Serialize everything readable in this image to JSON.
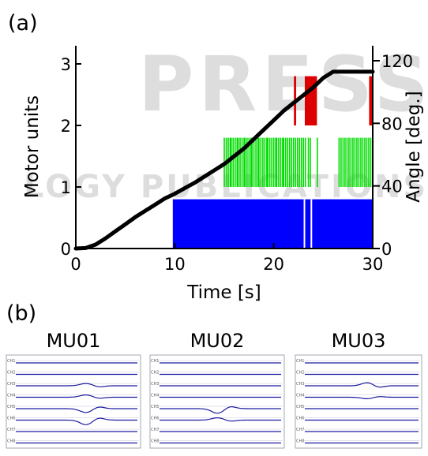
{
  "watermark": {
    "word1": "PRESS",
    "word2": "LOGY PUBLICATIONS"
  },
  "panel_a": {
    "label": "(a)"
  },
  "panel_b": {
    "label": "(b)",
    "mu_titles": [
      "MU01",
      "MU02",
      "MU03"
    ],
    "channel_labels": [
      "CH1",
      "CH2",
      "CH3",
      "CH4",
      "CH5",
      "CH6",
      "CH7",
      "CH8"
    ]
  },
  "colors": {
    "angle_line": "#000000",
    "mu1": "#0000ff",
    "mu2": "#00dd00",
    "mu3": "#dd0000",
    "emg_trace": "#1a1aa0"
  },
  "chart_data": {
    "type": "line",
    "xlabel": "Time [s]",
    "ylabel": "Motor units",
    "y2label": "Angle [deg.]",
    "xlim": [
      0,
      30
    ],
    "ylim": [
      0,
      3.3
    ],
    "y2lim": [
      0,
      120
    ],
    "xticks": [
      "0",
      "10",
      "20",
      "30"
    ],
    "yticks": [
      "0",
      "1",
      "2",
      "3"
    ],
    "y2ticks": [
      "0",
      "40",
      "80",
      "120"
    ],
    "angle_series": {
      "x": [
        0,
        1,
        2,
        3,
        4,
        5,
        6,
        7,
        8,
        9,
        10,
        11,
        12,
        13,
        14,
        15,
        16,
        17,
        18,
        19,
        20,
        21,
        22,
        23,
        24,
        25,
        26,
        27,
        28,
        29,
        30
      ],
      "y": [
        0,
        0.3,
        2.5,
        6.5,
        11,
        15.5,
        20,
        24,
        28,
        32,
        35,
        38.5,
        42,
        46,
        50,
        54,
        59,
        64,
        70,
        76,
        82,
        88,
        93,
        98,
        103,
        109,
        113,
        113,
        113,
        113,
        113
      ]
    },
    "spike_trains": [
      {
        "unit": 1,
        "ybase": 0,
        "height": 0.8,
        "fill_from": 9.8,
        "fill_to": 30,
        "gaps": [
          23.1,
          23.8
        ]
      },
      {
        "unit": 2,
        "ybase": 1,
        "height": 0.8,
        "times": [
          15.0,
          15.2,
          15.4,
          15.6,
          15.7,
          15.9,
          16.1,
          16.3,
          16.4,
          16.6,
          16.8,
          17.0,
          17.1,
          17.3,
          17.5,
          17.7,
          17.8,
          18.0,
          18.2,
          18.4,
          18.5,
          18.7,
          18.9,
          19.1,
          19.3,
          19.4,
          19.6,
          19.8,
          20.0,
          20.2,
          20.3,
          20.5,
          20.7,
          20.9,
          21.0,
          21.2,
          21.4,
          21.6,
          21.8,
          22.0,
          22.2,
          22.4,
          22.6,
          22.8,
          23.0,
          23.2,
          23.5,
          23.7,
          24.4,
          26.6,
          26.8,
          27.0,
          27.2,
          27.4,
          27.6,
          27.8,
          28.0,
          28.2,
          28.4,
          28.6,
          28.8,
          29.0,
          29.2,
          29.4,
          29.6,
          29.8
        ]
      },
      {
        "unit": 3,
        "ybase": 2,
        "height": 0.8,
        "times": [
          22.1,
          22.2,
          23.2,
          23.3,
          23.4,
          23.5,
          23.6,
          23.7,
          23.8,
          23.9,
          24.0,
          24.1,
          24.2,
          24.3,
          29.7,
          29.8,
          29.9
        ]
      }
    ]
  }
}
